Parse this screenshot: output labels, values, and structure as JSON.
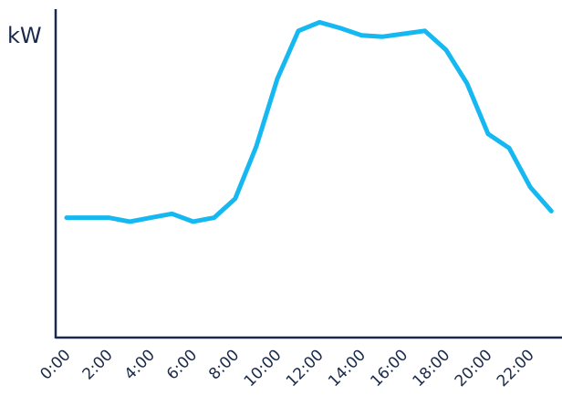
{
  "chart_data": {
    "type": "line",
    "title": "",
    "xlabel": "",
    "ylabel": "kW",
    "x": [
      "0:00",
      "1:00",
      "2:00",
      "3:00",
      "4:00",
      "5:00",
      "6:00",
      "7:00",
      "8:00",
      "9:00",
      "10:00",
      "11:00",
      "12:00",
      "13:00",
      "14:00",
      "15:00",
      "16:00",
      "17:00",
      "18:00",
      "19:00",
      "20:00",
      "21:00",
      "22:00",
      "23:00"
    ],
    "x_tick_labels": [
      "0:00",
      "2:00",
      "4:00",
      "6:00",
      "8:00",
      "10:00",
      "12:00",
      "14:00",
      "16:00",
      "18:00",
      "20:00",
      "22:00"
    ],
    "series": [
      {
        "values": [
          36.5,
          36.5,
          36.5,
          35.3,
          36.5,
          37.7,
          35.3,
          36.5,
          42.3,
          58.2,
          78.8,
          93.4,
          96.0,
          94.2,
          92.0,
          91.6,
          92.5,
          93.4,
          87.6,
          77.4,
          62.0,
          57.7,
          45.8,
          38.5
        ]
      }
    ],
    "ylim": [
      0,
      100
    ],
    "grid": false,
    "legend": "none",
    "colors": {
      "axis": "#1b2a4a",
      "series": "#15b8f0",
      "text": "#1b2a4a"
    }
  }
}
